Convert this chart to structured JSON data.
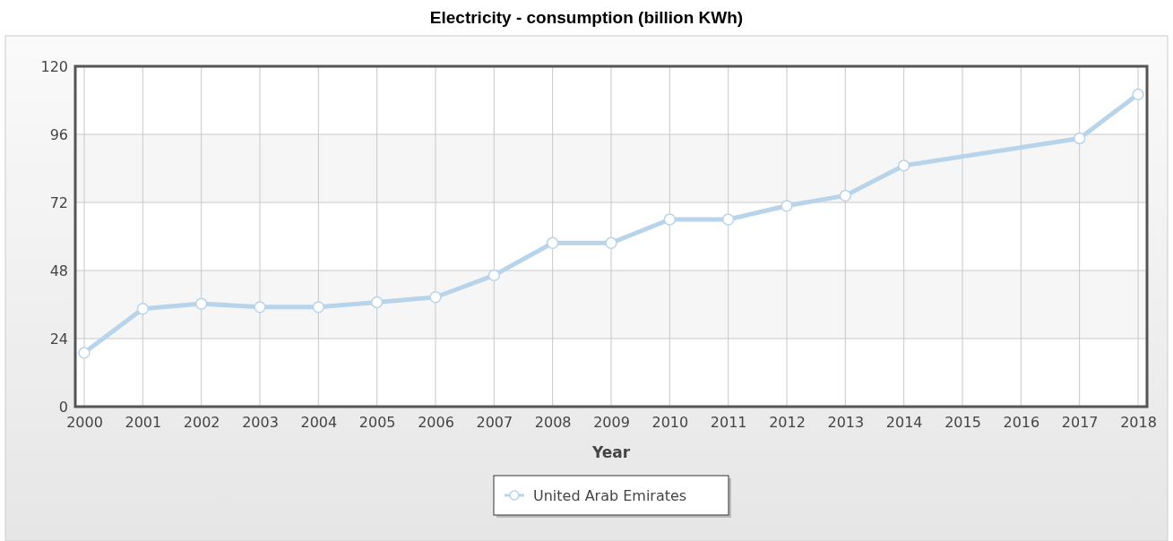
{
  "chart_data": {
    "type": "line",
    "title": "Electricity - consumption (billion KWh)",
    "xlabel": "Year",
    "x": [
      2000,
      2001,
      2002,
      2003,
      2004,
      2005,
      2006,
      2007,
      2008,
      2009,
      2010,
      2011,
      2012,
      2013,
      2014,
      2017,
      2018
    ],
    "series": [
      {
        "name": "United Arab Emirates",
        "color": "#b8d4ea",
        "values": [
          19.0,
          34.5,
          36.3,
          35.1,
          35.1,
          36.8,
          38.6,
          46.3,
          57.7,
          57.7,
          66.0,
          66.0,
          70.8,
          74.4,
          85.0,
          94.6,
          110.1
        ]
      }
    ],
    "xlim": [
      2000,
      2018
    ],
    "xticks": [
      2000,
      2001,
      2002,
      2003,
      2004,
      2005,
      2006,
      2007,
      2008,
      2009,
      2010,
      2011,
      2012,
      2013,
      2014,
      2015,
      2016,
      2017,
      2018
    ],
    "ylim": [
      0,
      120
    ],
    "yticks": [
      0,
      24,
      48,
      72,
      96,
      120
    ],
    "grid": true,
    "legend": "bottom",
    "marker": "circle",
    "line_style": "solid"
  }
}
